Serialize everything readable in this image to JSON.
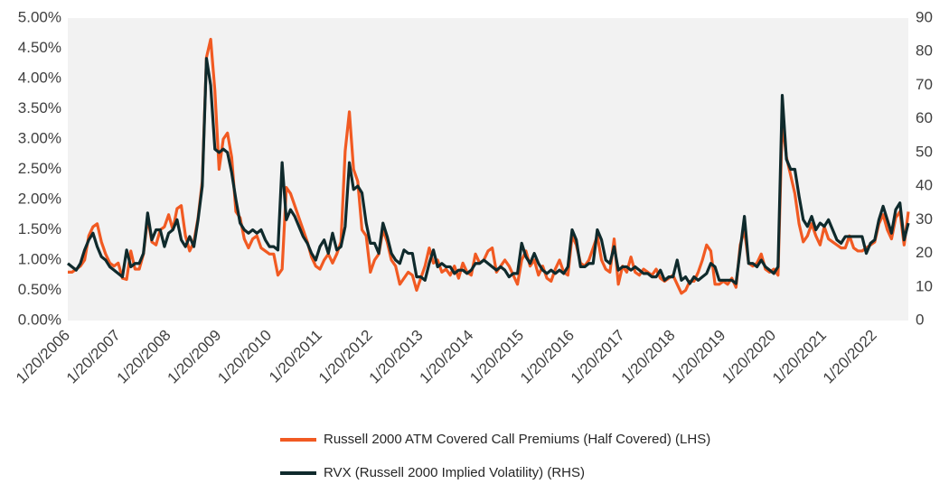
{
  "chart_data": {
    "type": "line",
    "x": [
      "1/20/2006",
      "2/20/2006",
      "3/20/2006",
      "4/20/2006",
      "5/20/2006",
      "6/20/2006",
      "7/20/2006",
      "8/20/2006",
      "9/20/2006",
      "10/20/2006",
      "11/20/2006",
      "12/20/2006",
      "1/20/2007",
      "2/20/2007",
      "3/20/2007",
      "4/20/2007",
      "5/20/2007",
      "6/20/2007",
      "7/20/2007",
      "8/20/2007",
      "9/20/2007",
      "10/20/2007",
      "11/20/2007",
      "12/20/2007",
      "1/20/2008",
      "2/20/2008",
      "3/20/2008",
      "4/20/2008",
      "5/20/2008",
      "6/20/2008",
      "7/20/2008",
      "8/20/2008",
      "9/20/2008",
      "10/20/2008",
      "11/20/2008",
      "12/20/2008",
      "1/20/2009",
      "2/20/2009",
      "3/20/2009",
      "4/20/2009",
      "5/20/2009",
      "6/20/2009",
      "7/20/2009",
      "8/20/2009",
      "9/20/2009",
      "10/20/2009",
      "11/20/2009",
      "12/20/2009",
      "1/20/2010",
      "2/20/2010",
      "3/20/2010",
      "4/20/2010",
      "5/20/2010",
      "6/20/2010",
      "7/20/2010",
      "8/20/2010",
      "9/20/2010",
      "10/20/2010",
      "11/20/2010",
      "12/20/2010",
      "1/20/2011",
      "2/20/2011",
      "3/20/2011",
      "4/20/2011",
      "5/20/2011",
      "6/20/2011",
      "7/20/2011",
      "8/20/2011",
      "9/20/2011",
      "10/20/2011",
      "11/20/2011",
      "12/20/2011",
      "1/20/2012",
      "2/20/2012",
      "3/20/2012",
      "4/20/2012",
      "5/20/2012",
      "6/20/2012",
      "7/20/2012",
      "8/20/2012",
      "9/20/2012",
      "10/20/2012",
      "11/20/2012",
      "12/20/2012",
      "1/20/2013",
      "2/20/2013",
      "3/20/2013",
      "4/20/2013",
      "5/20/2013",
      "6/20/2013",
      "7/20/2013",
      "8/20/2013",
      "9/20/2013",
      "10/20/2013",
      "11/20/2013",
      "12/20/2013",
      "1/20/2014",
      "2/20/2014",
      "3/20/2014",
      "4/20/2014",
      "5/20/2014",
      "6/20/2014",
      "7/20/2014",
      "8/20/2014",
      "9/20/2014",
      "10/20/2014",
      "11/20/2014",
      "12/20/2014",
      "1/20/2015",
      "2/20/2015",
      "3/20/2015",
      "4/20/2015",
      "5/20/2015",
      "6/20/2015",
      "7/20/2015",
      "8/20/2015",
      "9/20/2015",
      "10/20/2015",
      "11/20/2015",
      "12/20/2015",
      "1/20/2016",
      "2/20/2016",
      "3/20/2016",
      "4/20/2016",
      "5/20/2016",
      "6/20/2016",
      "7/20/2016",
      "8/20/2016",
      "9/20/2016",
      "10/20/2016",
      "11/20/2016",
      "12/20/2016",
      "1/20/2017",
      "2/20/2017",
      "3/20/2017",
      "4/20/2017",
      "5/20/2017",
      "6/20/2017",
      "7/20/2017",
      "8/20/2017",
      "9/20/2017",
      "10/20/2017",
      "11/20/2017",
      "12/20/2017",
      "1/20/2018",
      "2/20/2018",
      "3/20/2018",
      "4/20/2018",
      "5/20/2018",
      "6/20/2018",
      "7/20/2018",
      "8/20/2018",
      "9/20/2018",
      "10/20/2018",
      "11/20/2018",
      "12/20/2018",
      "1/20/2019",
      "2/20/2019",
      "3/20/2019",
      "4/20/2019",
      "5/20/2019",
      "6/20/2019",
      "7/20/2019",
      "8/20/2019",
      "9/20/2019",
      "10/20/2019",
      "11/20/2019",
      "12/20/2019",
      "1/20/2020",
      "2/20/2020",
      "3/20/2020",
      "4/20/2020",
      "5/20/2020",
      "6/20/2020",
      "7/20/2020",
      "8/20/2020",
      "9/20/2020",
      "10/20/2020",
      "11/20/2020",
      "12/20/2020",
      "1/20/2021",
      "2/20/2021",
      "3/20/2021",
      "4/20/2021",
      "5/20/2021",
      "6/20/2021",
      "7/20/2021",
      "8/20/2021",
      "9/20/2021",
      "10/20/2021",
      "11/20/2021",
      "12/20/2021",
      "1/20/2022",
      "2/20/2022",
      "3/20/2022",
      "4/20/2022",
      "5/20/2022",
      "6/20/2022",
      "7/20/2022",
      "8/20/2022",
      "9/20/2022"
    ],
    "series": [
      {
        "name": "Russell 2000 ATM Covered Call Premiums (Half Covered) (LHS)",
        "color": "#f15a22",
        "axis": "y",
        "values": [
          0.8,
          0.8,
          0.85,
          0.9,
          1.0,
          1.4,
          1.55,
          1.6,
          1.3,
          1.1,
          0.95,
          0.9,
          0.95,
          0.7,
          0.68,
          1.15,
          0.85,
          0.85,
          1.1,
          1.7,
          1.3,
          1.25,
          1.5,
          1.55,
          1.75,
          1.5,
          1.85,
          1.9,
          1.4,
          1.15,
          1.3,
          1.7,
          2.3,
          4.35,
          4.65,
          3.8,
          2.5,
          3.0,
          3.1,
          2.7,
          1.8,
          1.7,
          1.35,
          1.2,
          1.35,
          1.4,
          1.2,
          1.15,
          1.1,
          1.1,
          0.75,
          0.85,
          2.2,
          2.1,
          1.9,
          1.7,
          1.5,
          1.3,
          1.05,
          0.9,
          0.85,
          1.0,
          1.1,
          0.95,
          1.1,
          1.3,
          2.8,
          3.45,
          2.5,
          2.3,
          1.5,
          1.4,
          0.8,
          1.0,
          1.1,
          1.5,
          1.3,
          1.0,
          0.9,
          0.6,
          0.7,
          0.8,
          0.75,
          0.5,
          0.7,
          0.9,
          1.2,
          0.95,
          1.0,
          0.8,
          0.85,
          0.75,
          0.9,
          0.7,
          0.95,
          0.8,
          0.75,
          1.1,
          0.95,
          1.0,
          1.15,
          1.2,
          0.8,
          0.9,
          1.0,
          0.9,
          0.75,
          0.6,
          1.0,
          1.15,
          0.9,
          1.0,
          0.75,
          0.9,
          0.7,
          0.65,
          0.85,
          1.0,
          0.8,
          0.75,
          1.4,
          1.25,
          0.95,
          0.9,
          1.0,
          1.2,
          1.4,
          1.0,
          0.85,
          0.8,
          1.35,
          0.6,
          0.9,
          0.8,
          1.05,
          0.8,
          0.75,
          0.85,
          0.8,
          0.75,
          0.85,
          0.7,
          0.65,
          0.7,
          0.75,
          0.6,
          0.45,
          0.5,
          0.65,
          0.65,
          0.8,
          1.0,
          1.25,
          1.15,
          0.6,
          0.6,
          0.65,
          0.6,
          0.7,
          0.55,
          1.25,
          1.5,
          0.95,
          0.9,
          0.95,
          1.1,
          0.85,
          0.8,
          0.85,
          0.75,
          3.3,
          2.7,
          2.4,
          2.1,
          1.6,
          1.3,
          1.4,
          1.6,
          1.4,
          1.25,
          1.55,
          1.35,
          1.3,
          1.25,
          1.2,
          1.2,
          1.4,
          1.2,
          1.15,
          1.15,
          1.2,
          1.25,
          1.3,
          1.6,
          1.75,
          1.5,
          1.35,
          1.7,
          1.8,
          1.25,
          1.8
        ]
      },
      {
        "name": "RVX (Russell 2000 Implied Volatility) (RHS)",
        "color": "#0f2a2c",
        "axis": "y2",
        "values": [
          17,
          16,
          15,
          17,
          21,
          24,
          26,
          22,
          19,
          18,
          16,
          15,
          14,
          13,
          21,
          16,
          17,
          17,
          20,
          32,
          24,
          27,
          27,
          22,
          26,
          27,
          30,
          24,
          22,
          25,
          22,
          30,
          40,
          78,
          70,
          51,
          50,
          51,
          50,
          44,
          36,
          29,
          27,
          26,
          27,
          26,
          27,
          24,
          22,
          22,
          21,
          47,
          30,
          33,
          31,
          28,
          25,
          23,
          20,
          18,
          22,
          24,
          20,
          26,
          21,
          22,
          28,
          47,
          39,
          40,
          38,
          29,
          23,
          23,
          20,
          29,
          25,
          20,
          18,
          17,
          21,
          20,
          20,
          13,
          13,
          12,
          17,
          21,
          16,
          17,
          16,
          16,
          14,
          15,
          15,
          14,
          15,
          17,
          17,
          18,
          17,
          16,
          15,
          16,
          15,
          13,
          14,
          14,
          23,
          19,
          17,
          20,
          17,
          15,
          14,
          15,
          14,
          15,
          14,
          16,
          27,
          24,
          16,
          16,
          17,
          17,
          27,
          24,
          18,
          17,
          22,
          15,
          16,
          16,
          15,
          16,
          15,
          14,
          14,
          13,
          13,
          15,
          12,
          13,
          13,
          18,
          12,
          13,
          11,
          13,
          12,
          13,
          14,
          17,
          16,
          12,
          12,
          12,
          12,
          11,
          21,
          31,
          17,
          17,
          16,
          18,
          16,
          15,
          14,
          16,
          67,
          48,
          45,
          45,
          37,
          30,
          28,
          31,
          27,
          29,
          28,
          30,
          27,
          24,
          23,
          25,
          25,
          25,
          25,
          25,
          20,
          23,
          24,
          30,
          34,
          30,
          26,
          33,
          35,
          24,
          29
        ]
      }
    ],
    "xlim": [
      "1/20/2006",
      "9/20/2022"
    ],
    "xticks": [
      "1/20/2006",
      "1/20/2007",
      "1/20/2008",
      "1/20/2009",
      "1/20/2010",
      "1/20/2011",
      "1/20/2012",
      "1/20/2013",
      "1/20/2014",
      "1/20/2015",
      "1/20/2016",
      "1/20/2017",
      "1/20/2018",
      "1/20/2019",
      "1/20/2020",
      "1/20/2021",
      "1/20/2022"
    ],
    "ylim": [
      0,
      5
    ],
    "yticks": [
      {
        "value": 0,
        "label": "0.00%"
      },
      {
        "value": 0.5,
        "label": "0.50%"
      },
      {
        "value": 1,
        "label": "1.00%"
      },
      {
        "value": 1.5,
        "label": "1.50%"
      },
      {
        "value": 2,
        "label": "2.00%"
      },
      {
        "value": 2.5,
        "label": "2.50%"
      },
      {
        "value": 3,
        "label": "3.00%"
      },
      {
        "value": 3.5,
        "label": "3.50%"
      },
      {
        "value": 4,
        "label": "4.00%"
      },
      {
        "value": 4.5,
        "label": "4.50%"
      },
      {
        "value": 5,
        "label": "5.00%"
      }
    ],
    "y2lim": [
      0,
      90
    ],
    "y2ticks": [
      0,
      10,
      20,
      30,
      40,
      50,
      60,
      70,
      80,
      90
    ],
    "grid": false,
    "legend": "bottom"
  }
}
